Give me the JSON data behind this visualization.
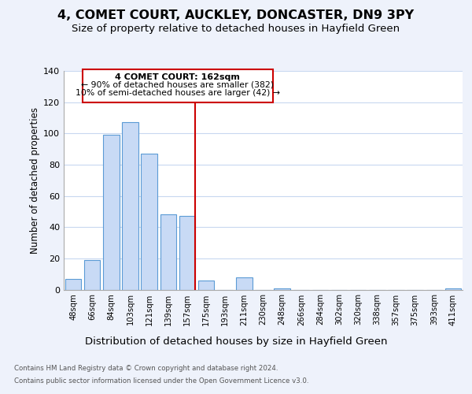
{
  "title": "4, COMET COURT, AUCKLEY, DONCASTER, DN9 3PY",
  "subtitle": "Size of property relative to detached houses in Hayfield Green",
  "xlabel": "Distribution of detached houses by size in Hayfield Green",
  "ylabel": "Number of detached properties",
  "bar_labels": [
    "48sqm",
    "66sqm",
    "84sqm",
    "103sqm",
    "121sqm",
    "139sqm",
    "157sqm",
    "175sqm",
    "193sqm",
    "211sqm",
    "230sqm",
    "248sqm",
    "266sqm",
    "284sqm",
    "302sqm",
    "320sqm",
    "338sqm",
    "357sqm",
    "375sqm",
    "393sqm",
    "411sqm"
  ],
  "bar_values": [
    7,
    19,
    99,
    107,
    87,
    48,
    47,
    6,
    0,
    8,
    0,
    1,
    0,
    0,
    0,
    0,
    0,
    0,
    0,
    0,
    1
  ],
  "bar_color": "#c8daf5",
  "bar_edge_color": "#5b9bd5",
  "ref_line_color": "#cc0000",
  "annotation_line0": "4 COMET COURT: 162sqm",
  "annotation_line1": "← 90% of detached houses are smaller (382)",
  "annotation_line2": "10% of semi-detached houses are larger (42) →",
  "ylim": [
    0,
    140
  ],
  "yticks": [
    0,
    20,
    40,
    60,
    80,
    100,
    120,
    140
  ],
  "footnote1": "Contains HM Land Registry data © Crown copyright and database right 2024.",
  "footnote2": "Contains public sector information licensed under the Open Government Licence v3.0.",
  "bg_color": "#eef2fb",
  "plot_bg_color": "#ffffff",
  "title_fontsize": 11.5,
  "subtitle_fontsize": 9.5,
  "xlabel_fontsize": 9.5,
  "ylabel_fontsize": 8.5,
  "annotation_box_color": "#ffffff",
  "annotation_box_edge": "#cc0000"
}
